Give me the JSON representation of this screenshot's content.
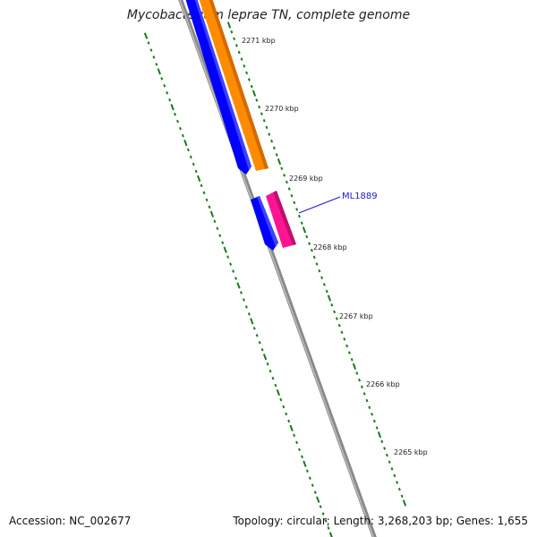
{
  "title": "Mycobacterium leprae TN, complete genome",
  "accession": "Accession: NC_002677",
  "summary": "Topology: circular; Length: 3,268,203 bp; Genes: 1,655",
  "colors": {
    "backbone": "#777777",
    "forward_cds": "#0000ff",
    "forward_cds_alt": "#ff8c00",
    "reverse_cds": "#ff1493",
    "tick": "#1a7a1a",
    "label_line": "#1a1acc"
  },
  "scale_labels": [
    {
      "kbp": 2271,
      "text": "2271 kbp"
    },
    {
      "kbp": 2270,
      "text": "2270 kbp"
    },
    {
      "kbp": 2269,
      "text": "2269 kbp"
    },
    {
      "kbp": 2268,
      "text": "2268 kbp"
    },
    {
      "kbp": 2267,
      "text": "2267 kbp"
    },
    {
      "kbp": 2266,
      "text": "2266 kbp"
    },
    {
      "kbp": 2265,
      "text": "2265 kbp"
    }
  ],
  "genes": [
    {
      "name": "ML1889",
      "label": "ML1889",
      "color": "reverse_cds"
    }
  ]
}
